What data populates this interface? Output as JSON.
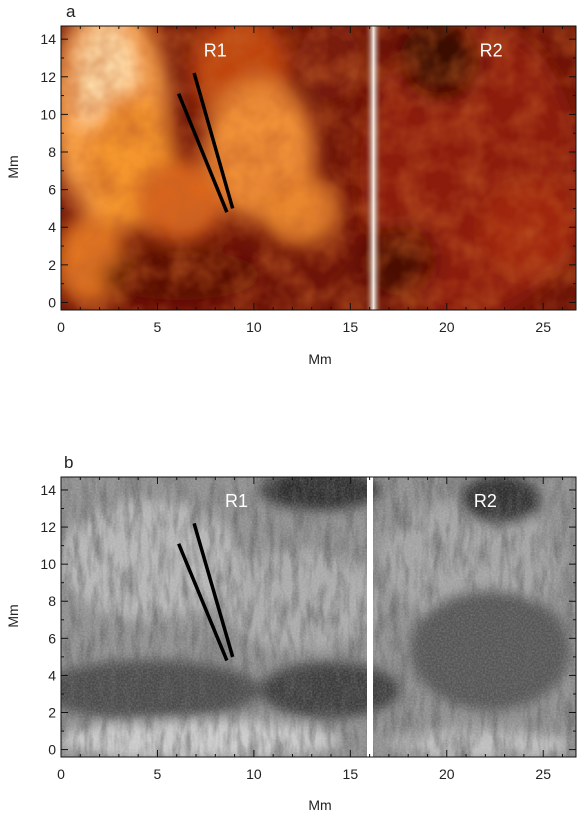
{
  "figure": {
    "panels": [
      {
        "letter": "a",
        "xlabel": "Mm",
        "ylabel": "Mm",
        "x_ticks": [
          "0",
          "5",
          "10",
          "15",
          "20",
          "25"
        ],
        "y_ticks": [
          "0",
          "2",
          "4",
          "6",
          "8",
          "10",
          "12",
          "14"
        ],
        "region_labels": [
          "R1",
          "R2"
        ],
        "colormap": "red-temperature",
        "separator_color": "#f2f2f2"
      },
      {
        "letter": "b",
        "xlabel": "Mm",
        "ylabel": "Mm",
        "x_ticks": [
          "0",
          "5",
          "10",
          "15",
          "20",
          "25"
        ],
        "y_ticks": [
          "0",
          "2",
          "4",
          "6",
          "8",
          "10",
          "12",
          "14"
        ],
        "region_labels": [
          "R1",
          "R2"
        ],
        "colormap": "grayscale",
        "separator_color": "#ffffff"
      }
    ]
  },
  "chart_data": [
    {
      "type": "heatmap",
      "xlim": [
        0,
        26.7
      ],
      "ylim": [
        -0.4,
        14.7
      ],
      "x_tick_values": [
        0,
        5,
        10,
        15,
        20,
        25
      ],
      "y_tick_values": [
        0,
        2,
        4,
        6,
        8,
        10,
        12,
        14
      ],
      "separator_x": 16.2,
      "regions": [
        {
          "label": "R1",
          "x": 8.0,
          "y": 13.4
        },
        {
          "label": "R2",
          "x": 22.3,
          "y": 13.4
        }
      ],
      "slits": [
        {
          "x": [
            6.1,
            8.6
          ],
          "y": [
            11.1,
            4.8
          ]
        },
        {
          "x": [
            6.9,
            8.9
          ],
          "y": [
            12.2,
            5.0
          ]
        }
      ]
    },
    {
      "type": "heatmap",
      "xlim": [
        0,
        26.7
      ],
      "ylim": [
        -0.4,
        14.7
      ],
      "x_tick_values": [
        0,
        5,
        10,
        15,
        20,
        25
      ],
      "y_tick_values": [
        0,
        2,
        4,
        6,
        8,
        10,
        12,
        14
      ],
      "separator_x": 16.0,
      "regions": [
        {
          "label": "R1",
          "x": 9.1,
          "y": 13.4
        },
        {
          "label": "R2",
          "x": 22.0,
          "y": 13.4
        }
      ],
      "slits": [
        {
          "x": [
            6.1,
            8.6
          ],
          "y": [
            11.1,
            4.8
          ]
        },
        {
          "x": [
            6.9,
            8.9
          ],
          "y": [
            12.2,
            5.0
          ]
        }
      ]
    }
  ]
}
